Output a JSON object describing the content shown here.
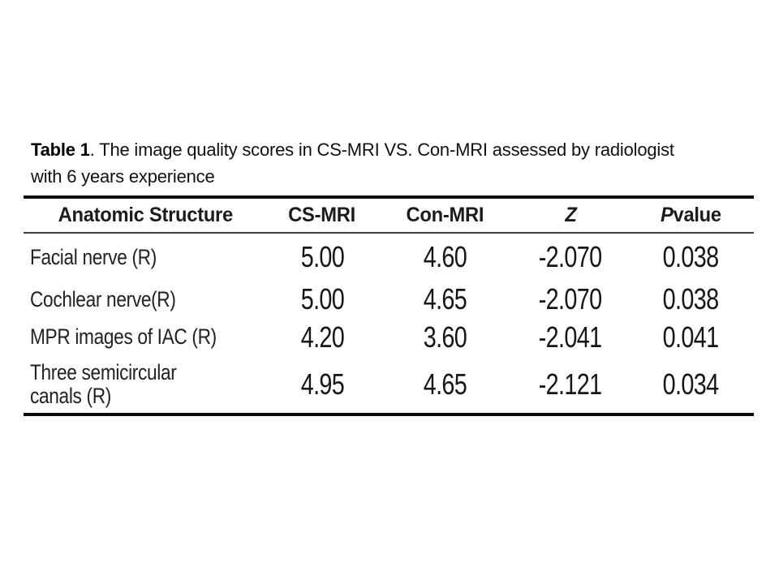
{
  "caption": {
    "bold_prefix": "Table 1",
    "line1_rest": ". The image quality scores in CS-MRI VS. Con-MRI assessed by radiologist",
    "line2": "with 6 years experience"
  },
  "table": {
    "headers": {
      "anatomic": "Anatomic Structure",
      "cs": "CS-MRI",
      "con": "Con-MRI",
      "z": "Z",
      "p_italic": "P",
      "p_rest": "value"
    },
    "rows": [
      {
        "name": "Facial nerve (R)",
        "cs": "5.00",
        "con": "4.60",
        "z": "-2.070",
        "p": "0.038"
      },
      {
        "name": "Cochlear nerve(R)",
        "cs": "5.00",
        "con": "4.65",
        "z": "-2.070",
        "p": "0.038"
      },
      {
        "name": "MPR images of IAC (R)",
        "cs": "4.20",
        "con": "3.60",
        "z": "-2.041",
        "p": "0.041"
      },
      {
        "name": "Three semicircular",
        "name2": "canals (R)",
        "cs": "4.95",
        "con": "4.65",
        "z": "-2.121",
        "p": "0.034"
      }
    ]
  }
}
